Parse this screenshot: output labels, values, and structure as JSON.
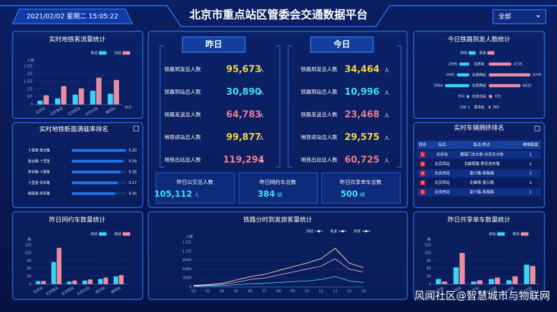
{
  "header": {
    "datetime": "2021/02/02 星期二 15:05:22",
    "title": "北京市重点站区管委会交通数据平台",
    "select": "全部"
  },
  "stats": {
    "yesterday": {
      "title": "昨日",
      "items": [
        {
          "label": "铁路到发总人数",
          "value": "95,673",
          "unit": "人"
        },
        {
          "label": "铁路到站总人数",
          "value": "30,890",
          "unit": "人"
        },
        {
          "label": "铁路发送总人数",
          "value": "64,783",
          "unit": "人"
        },
        {
          "label": "地铁进站总人数",
          "value": "99,877",
          "unit": "人"
        },
        {
          "label": "地铁出站总人数",
          "value": "119,294",
          "unit": "人"
        }
      ]
    },
    "today": {
      "title": "今日",
      "items": [
        {
          "label": "铁路到发总人数",
          "value": "34,464",
          "unit": "人"
        },
        {
          "label": "铁路到站总人数",
          "value": "10,996",
          "unit": "人"
        },
        {
          "label": "铁路发送总人数",
          "value": "23,468",
          "unit": "人"
        },
        {
          "label": "地铁进站总人数",
          "value": "29,575",
          "unit": "人"
        },
        {
          "label": "地铁出站总人数",
          "value": "60,725",
          "unit": "人"
        }
      ]
    },
    "totals": [
      {
        "label": "昨日公交总人数",
        "value": "105,112",
        "unit": "人"
      },
      {
        "label": "昨日网约车总数",
        "value": "384",
        "unit": "辆"
      },
      {
        "label": "昨日共享单车总数",
        "value": "500",
        "unit": "辆"
      }
    ]
  },
  "table": {
    "title": "实时车辆拥挤排名",
    "headers": [
      "排名",
      "站点",
      "起点-终点",
      "拥堵程度"
    ],
    "rows": [
      [
        "1",
        "北京站",
        "建国门北大街-北京东大街",
        "1"
      ],
      [
        "2",
        "北京西站",
        "北蜂窝路-莲花池东路",
        "1"
      ],
      [
        "3",
        "北京西站",
        "复兴路-铁路路",
        "1"
      ],
      [
        "4",
        "北京西站",
        "北蜂窝-复兴路",
        "1"
      ],
      [
        "5",
        "北京西站",
        "复兴路-铁路路",
        "1"
      ]
    ]
  },
  "chart_data": [
    {
      "type": "bar",
      "title": "实时地铁客流量统计",
      "y_label": "人数",
      "x_label": "站点",
      "categories": [
        "北京站",
        "北京南站",
        "北京西站",
        "北京北站",
        "朝阳站"
      ],
      "series": [
        {
          "name": "进站",
          "color": "#3ad3f5",
          "values": [
            2500,
            4000,
            6500,
            9000,
            7000
          ]
        },
        {
          "name": "出站",
          "color": "#e98ea0",
          "values": [
            6000,
            12000,
            10500,
            17500,
            16000
          ]
        }
      ],
      "ylim": [
        0,
        25000
      ],
      "yticks": [
        0,
        {
          "value": 5000,
          "label": "5千"
        },
        {
          "value": 10000,
          "label": "1万"
        },
        {
          "value": 15000,
          "label": "1.5万"
        },
        {
          "value": 20000,
          "label": "2万"
        },
        {
          "value": 25000,
          "label": "2.5万"
        }
      ]
    },
    {
      "type": "hbar",
      "title": "实时地铁断面满载率排名",
      "categories": [
        "十里堡-金台路",
        "金台路-十里堡",
        "青年路-十里堡",
        "十里堡-青年路",
        "褡裢坡-青年路"
      ],
      "values": [
        0.2,
        0.19,
        0.18,
        0.17,
        0.16
      ],
      "value_labels": [
        "0.20",
        "0.19",
        "0.18",
        "0.17",
        "0.16"
      ],
      "color": "#1f74e8",
      "xlim": [
        0,
        0.2
      ]
    },
    {
      "type": "bar",
      "title": "昨日网约车数量统计",
      "y_label": "辆",
      "categories": [
        "北京站",
        "北京南站",
        "北京西站",
        "北京北站",
        "清河站",
        "朝阳站"
      ],
      "series": [
        {
          "name": "进站",
          "color": "#3ad3f5",
          "values": [
            12,
            85,
            10,
            14,
            20,
            30
          ]
        },
        {
          "name": "离站",
          "color": "#e98ea0",
          "values": [
            12,
            140,
            14,
            18,
            25,
            35
          ]
        }
      ],
      "ylim": [
        0,
        150
      ],
      "yticks": [
        0,
        30,
        60,
        90,
        120,
        150
      ]
    },
    {
      "type": "line",
      "title": "铁路分时到发旅客量统计",
      "y_label": "人数",
      "categories": [
        "02",
        "03",
        "04",
        "05",
        "06",
        "07",
        "08",
        "09",
        "10",
        "11",
        "12",
        "13",
        "14"
      ],
      "series": [
        {
          "name": "到站",
          "color": "#3ad3f5",
          "values": [
            200,
            300,
            400,
            800,
            1000,
            1200,
            1500,
            1800,
            2000,
            2500,
            3500,
            2000,
            1500
          ]
        },
        {
          "name": "发送",
          "color": "#f0a8c8",
          "values": [
            300,
            500,
            800,
            1500,
            2500,
            3000,
            4000,
            5000,
            6000,
            7000,
            9500,
            6000,
            5000
          ]
        },
        {
          "name": "到发",
          "color": "#f5e6a0",
          "values": [
            500,
            800,
            1200,
            2300,
            3500,
            4200,
            5500,
            6800,
            8000,
            9500,
            13000,
            8000,
            6500
          ]
        }
      ],
      "ylim": [
        0,
        15000
      ],
      "yticks": [
        0,
        3000,
        6000,
        9000,
        {
          "value": 12000,
          "label": "1.2万"
        },
        {
          "value": 15000,
          "label": "1.5万"
        }
      ]
    },
    {
      "type": "butterfly",
      "title": "今日铁路到发人数统计",
      "categories": [
        "北京站",
        "北京西站",
        "北京南站",
        "北京北站",
        "清河站"
      ],
      "series": [
        {
          "name": "到站",
          "color": "#3ad3f5",
          "values": [
            2096,
            2581,
            5064,
            554,
            168
          ]
        },
        {
          "name": "发送",
          "color": "#e98ea0",
          "values": [
            4716,
            8705,
            6632,
            725,
            360
          ]
        }
      ],
      "xlim": [
        0,
        9000
      ]
    },
    {
      "type": "bar",
      "title": "昨日共享单车数量统计",
      "y_label": "辆",
      "categories": [
        "北京站",
        "北京南站",
        "北京西站",
        "北京北站",
        "清河站",
        "朝阳站"
      ],
      "series": [
        {
          "name": "进站",
          "color": "#3ad3f5",
          "values": [
            20,
            65,
            10,
            20,
            15,
            75
          ]
        },
        {
          "name": "离站",
          "color": "#e98ea0",
          "values": [
            10,
            120,
            15,
            25,
            30,
            70
          ]
        }
      ],
      "ylim": [
        0,
        150
      ],
      "yticks": [
        0,
        30,
        60,
        90,
        120,
        150
      ]
    }
  ],
  "watermark": "风闻社区@智慧城市与物联网"
}
